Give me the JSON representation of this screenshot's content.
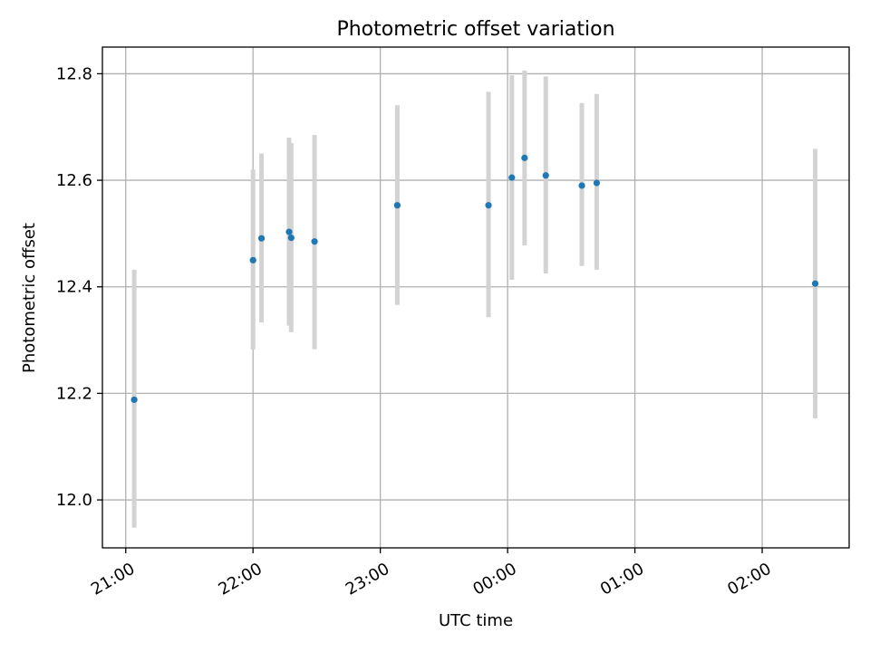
{
  "chart_data": {
    "type": "scatter",
    "title": "Photometric offset variation",
    "xlabel": "UTC time",
    "ylabel": "Photometric offset",
    "x_unit": "UTC time (HH:MM), continuing past midnight",
    "xlim": [
      "20:49",
      "02:41"
    ],
    "ylim": [
      11.91,
      12.85
    ],
    "grid": true,
    "xticks": [
      "21:00",
      "22:00",
      "23:00",
      "00:00",
      "01:00",
      "02:00"
    ],
    "yticks": [
      "12.0",
      "12.2",
      "12.4",
      "12.6",
      "12.8"
    ],
    "colors": {
      "points": "#1f77b4",
      "errorbars": "#d3d3d3",
      "grid": "#b0b0b0"
    },
    "points": [
      {
        "x": "21:04",
        "y": 12.188,
        "yerr_low": 11.948,
        "yerr_high": 12.432
      },
      {
        "x": "22:00",
        "y": 12.45,
        "yerr_low": 12.282,
        "yerr_high": 12.62
      },
      {
        "x": "22:04",
        "y": 12.491,
        "yerr_low": 12.333,
        "yerr_high": 12.65
      },
      {
        "x": "22:17",
        "y": 12.503,
        "yerr_low": 12.327,
        "yerr_high": 12.68
      },
      {
        "x": "22:18",
        "y": 12.492,
        "yerr_low": 12.315,
        "yerr_high": 12.67
      },
      {
        "x": "22:29",
        "y": 12.485,
        "yerr_low": 12.283,
        "yerr_high": 12.685
      },
      {
        "x": "23:08",
        "y": 12.553,
        "yerr_low": 12.366,
        "yerr_high": 12.741
      },
      {
        "x": "23:51",
        "y": 12.553,
        "yerr_low": 12.343,
        "yerr_high": 12.766
      },
      {
        "x": "00:02",
        "y": 12.605,
        "yerr_low": 12.413,
        "yerr_high": 12.797
      },
      {
        "x": "00:08",
        "y": 12.642,
        "yerr_low": 12.478,
        "yerr_high": 12.806
      },
      {
        "x": "00:18",
        "y": 12.609,
        "yerr_low": 12.425,
        "yerr_high": 12.795
      },
      {
        "x": "00:35",
        "y": 12.59,
        "yerr_low": 12.439,
        "yerr_high": 12.745
      },
      {
        "x": "00:42",
        "y": 12.595,
        "yerr_low": 12.432,
        "yerr_high": 12.762
      },
      {
        "x": "02:25",
        "y": 12.406,
        "yerr_low": 12.153,
        "yerr_high": 12.659
      }
    ]
  }
}
